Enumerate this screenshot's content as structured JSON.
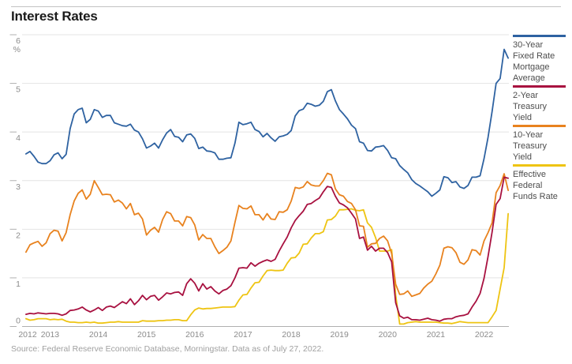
{
  "page": {
    "title": "Interest Rates",
    "source": "Source: Federal Reserve Economic Database, Morningstar. Data as of July 27, 2022."
  },
  "chart_data": {
    "type": "line",
    "title": "Interest Rates",
    "unit": "%",
    "grid": true,
    "legend_position": "right",
    "xlim": [
      2012.42,
      2022.58
    ],
    "ylim": [
      0,
      6
    ],
    "x_start": 2012.5,
    "x_step_months": 1,
    "x_ticks": [
      2012,
      2013,
      2014,
      2015,
      2016,
      2017,
      2018,
      2019,
      2020,
      2021,
      2022
    ],
    "y_ticks": [
      6,
      5,
      4,
      3,
      2,
      1,
      0
    ],
    "series": [
      {
        "name": "30-Year Fixed Rate Mortgage Average",
        "color": "#2e62a1",
        "values": [
          3.55,
          3.6,
          3.5,
          3.38,
          3.35,
          3.35,
          3.41,
          3.53,
          3.57,
          3.45,
          3.54,
          4.07,
          4.37,
          4.46,
          4.49,
          4.19,
          4.26,
          4.46,
          4.43,
          4.3,
          4.34,
          4.34,
          4.19,
          4.16,
          4.13,
          4.12,
          4.16,
          4.04,
          4.0,
          3.86,
          3.67,
          3.71,
          3.77,
          3.67,
          3.84,
          3.98,
          4.05,
          3.91,
          3.89,
          3.8,
          3.94,
          3.96,
          3.87,
          3.66,
          3.69,
          3.61,
          3.6,
          3.57,
          3.44,
          3.44,
          3.46,
          3.47,
          3.77,
          4.2,
          4.15,
          4.17,
          4.2,
          4.05,
          4.01,
          3.9,
          3.97,
          3.88,
          3.81,
          3.9,
          3.92,
          3.95,
          4.03,
          4.33,
          4.44,
          4.47,
          4.59,
          4.57,
          4.53,
          4.55,
          4.63,
          4.83,
          4.87,
          4.64,
          4.46,
          4.37,
          4.27,
          4.14,
          4.07,
          3.8,
          3.77,
          3.62,
          3.61,
          3.69,
          3.7,
          3.72,
          3.62,
          3.47,
          3.45,
          3.31,
          3.23,
          3.16,
          3.02,
          2.94,
          2.89,
          2.83,
          2.77,
          2.68,
          2.74,
          2.81,
          3.08,
          3.06,
          2.96,
          2.98,
          2.87,
          2.84,
          2.9,
          3.07,
          3.07,
          3.1,
          3.45,
          3.89,
          4.42,
          5.0,
          5.1,
          5.7,
          5.52
        ]
      },
      {
        "name": "2-Year Treasury Yield",
        "color": "#a81140",
        "values": [
          0.25,
          0.27,
          0.26,
          0.28,
          0.27,
          0.26,
          0.27,
          0.27,
          0.26,
          0.23,
          0.26,
          0.33,
          0.34,
          0.36,
          0.4,
          0.34,
          0.3,
          0.34,
          0.39,
          0.33,
          0.4,
          0.42,
          0.39,
          0.45,
          0.51,
          0.47,
          0.57,
          0.45,
          0.53,
          0.64,
          0.55,
          0.62,
          0.64,
          0.54,
          0.61,
          0.69,
          0.67,
          0.7,
          0.71,
          0.64,
          0.88,
          0.98,
          0.89,
          0.73,
          0.88,
          0.77,
          0.82,
          0.73,
          0.67,
          0.74,
          0.77,
          0.84,
          1.0,
          1.2,
          1.21,
          1.2,
          1.31,
          1.24,
          1.3,
          1.34,
          1.37,
          1.34,
          1.38,
          1.55,
          1.7,
          1.84,
          2.03,
          2.18,
          2.28,
          2.37,
          2.51,
          2.53,
          2.59,
          2.64,
          2.77,
          2.88,
          2.86,
          2.68,
          2.54,
          2.5,
          2.44,
          2.33,
          2.21,
          1.81,
          1.84,
          1.57,
          1.65,
          1.55,
          1.61,
          1.61,
          1.52,
          1.33,
          0.49,
          0.22,
          0.17,
          0.19,
          0.14,
          0.14,
          0.13,
          0.15,
          0.17,
          0.14,
          0.13,
          0.11,
          0.15,
          0.16,
          0.16,
          0.2,
          0.22,
          0.23,
          0.26,
          0.4,
          0.52,
          0.68,
          0.99,
          1.44,
          1.94,
          2.51,
          2.63,
          3.07,
          3.05
        ]
      },
      {
        "name": "10-Year Treasury Yield",
        "color": "#e8821e",
        "values": [
          1.53,
          1.68,
          1.72,
          1.75,
          1.65,
          1.72,
          1.91,
          1.98,
          1.96,
          1.76,
          1.93,
          2.3,
          2.58,
          2.74,
          2.81,
          2.62,
          2.72,
          3.0,
          2.86,
          2.71,
          2.72,
          2.71,
          2.56,
          2.6,
          2.54,
          2.42,
          2.53,
          2.3,
          2.33,
          2.21,
          1.88,
          1.98,
          2.04,
          1.94,
          2.2,
          2.36,
          2.32,
          2.17,
          2.17,
          2.07,
          2.26,
          2.24,
          2.09,
          1.78,
          1.89,
          1.81,
          1.81,
          1.64,
          1.5,
          1.56,
          1.63,
          1.76,
          2.14,
          2.49,
          2.43,
          2.42,
          2.48,
          2.3,
          2.3,
          2.19,
          2.32,
          2.21,
          2.2,
          2.36,
          2.35,
          2.4,
          2.58,
          2.86,
          2.84,
          2.87,
          2.98,
          2.91,
          2.89,
          2.89,
          3.0,
          3.15,
          3.12,
          2.83,
          2.71,
          2.68,
          2.57,
          2.53,
          2.4,
          2.07,
          2.06,
          1.63,
          1.7,
          1.71,
          1.81,
          1.86,
          1.76,
          1.5,
          0.87,
          0.66,
          0.67,
          0.73,
          0.62,
          0.65,
          0.68,
          0.79,
          0.87,
          0.93,
          1.08,
          1.26,
          1.61,
          1.64,
          1.62,
          1.52,
          1.32,
          1.28,
          1.37,
          1.58,
          1.56,
          1.47,
          1.76,
          1.93,
          2.13,
          2.75,
          2.9,
          3.14,
          2.8
        ]
      },
      {
        "name": "Effective Federal Funds Rate",
        "color": "#eec412",
        "values": [
          0.16,
          0.13,
          0.14,
          0.16,
          0.16,
          0.16,
          0.14,
          0.15,
          0.14,
          0.15,
          0.11,
          0.09,
          0.09,
          0.08,
          0.08,
          0.09,
          0.08,
          0.09,
          0.07,
          0.07,
          0.08,
          0.09,
          0.09,
          0.1,
          0.09,
          0.09,
          0.09,
          0.09,
          0.09,
          0.12,
          0.11,
          0.11,
          0.11,
          0.12,
          0.12,
          0.13,
          0.13,
          0.14,
          0.14,
          0.12,
          0.12,
          0.24,
          0.34,
          0.38,
          0.36,
          0.37,
          0.37,
          0.38,
          0.39,
          0.4,
          0.4,
          0.4,
          0.41,
          0.54,
          0.65,
          0.66,
          0.79,
          0.9,
          0.91,
          1.04,
          1.15,
          1.16,
          1.15,
          1.15,
          1.16,
          1.3,
          1.41,
          1.42,
          1.51,
          1.69,
          1.7,
          1.82,
          1.91,
          1.91,
          1.95,
          2.19,
          2.2,
          2.27,
          2.4,
          2.4,
          2.41,
          2.42,
          2.39,
          2.38,
          2.4,
          2.13,
          2.04,
          1.83,
          1.55,
          1.55,
          1.55,
          1.58,
          0.65,
          0.05,
          0.05,
          0.08,
          0.09,
          0.1,
          0.09,
          0.09,
          0.09,
          0.09,
          0.09,
          0.08,
          0.07,
          0.07,
          0.06,
          0.08,
          0.1,
          0.09,
          0.08,
          0.08,
          0.08,
          0.08,
          0.08,
          0.08,
          0.2,
          0.33,
          0.77,
          1.21,
          2.32
        ]
      }
    ],
    "source_note": "Source: Federal Reserve Economic Database, Morningstar. Data as of July 27, 2022."
  }
}
